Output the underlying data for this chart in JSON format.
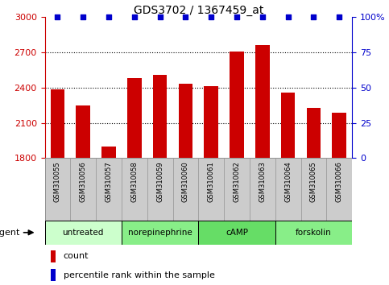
{
  "title": "GDS3702 / 1367459_at",
  "samples": [
    "GSM310055",
    "GSM310056",
    "GSM310057",
    "GSM310058",
    "GSM310059",
    "GSM310060",
    "GSM310061",
    "GSM310062",
    "GSM310063",
    "GSM310064",
    "GSM310065",
    "GSM310066"
  ],
  "counts": [
    2385,
    2245,
    1900,
    2480,
    2510,
    2435,
    2415,
    2710,
    2760,
    2360,
    2230,
    2190
  ],
  "percentile_ranks": [
    100,
    100,
    100,
    100,
    100,
    100,
    100,
    100,
    100,
    100,
    100,
    100
  ],
  "bar_color": "#cc0000",
  "dot_color": "#0000cc",
  "ylim_left": [
    1800,
    3000
  ],
  "ylim_right": [
    0,
    100
  ],
  "yticks_left": [
    1800,
    2100,
    2400,
    2700,
    3000
  ],
  "yticks_right": [
    0,
    25,
    50,
    75,
    100
  ],
  "ytick_labels_left": [
    "1800",
    "2100",
    "2400",
    "2700",
    "3000"
  ],
  "ytick_labels_right": [
    "0",
    "25",
    "50",
    "75",
    "100%"
  ],
  "groups": [
    {
      "label": "untreated",
      "start": 0,
      "end": 3,
      "color": "#ccffcc"
    },
    {
      "label": "norepinephrine",
      "start": 3,
      "end": 6,
      "color": "#88ee88"
    },
    {
      "label": "cAMP",
      "start": 6,
      "end": 9,
      "color": "#66dd66"
    },
    {
      "label": "forskolin",
      "start": 9,
      "end": 12,
      "color": "#88ee88"
    }
  ],
  "agent_label": "agent",
  "legend_count_label": "count",
  "legend_percentile_label": "percentile rank within the sample",
  "grid_color": "#000000",
  "tick_color_left": "#cc0000",
  "tick_color_right": "#0000cc",
  "bar_bottom": 1800,
  "sample_bg_color": "#cccccc",
  "fig_bg_color": "#ffffff"
}
